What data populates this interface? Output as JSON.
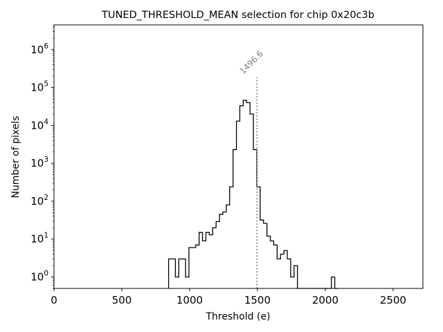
{
  "chart_data": {
    "type": "histogram-step",
    "title": "TUNED_THRESHOLD_MEAN selection for chip 0x20c3b",
    "xlabel": "Threshold (e)",
    "ylabel": "Number of pixels",
    "xlim": [
      0,
      2720
    ],
    "ylim": [
      0.5,
      4500000
    ],
    "yscale": "log",
    "grid": false,
    "x_ticks": [
      {
        "value": 0,
        "label": "0"
      },
      {
        "value": 500,
        "label": "500"
      },
      {
        "value": 1000,
        "label": "1000"
      },
      {
        "value": 1500,
        "label": "1500"
      },
      {
        "value": 2000,
        "label": "2000"
      },
      {
        "value": 2500,
        "label": "2500"
      }
    ],
    "y_ticks": [
      {
        "value": 1,
        "base": "10",
        "exp": "0"
      },
      {
        "value": 10,
        "base": "10",
        "exp": "1"
      },
      {
        "value": 100,
        "base": "10",
        "exp": "2"
      },
      {
        "value": 1000,
        "base": "10",
        "exp": "3"
      },
      {
        "value": 10000,
        "base": "10",
        "exp": "4"
      },
      {
        "value": 100000,
        "base": "10",
        "exp": "5"
      },
      {
        "value": 1000000,
        "base": "10",
        "exp": "6"
      }
    ],
    "bin_edges": [
      845,
      870,
      895,
      920,
      945,
      970,
      995,
      1020,
      1045,
      1070,
      1095,
      1120,
      1145,
      1170,
      1195,
      1220,
      1245,
      1270,
      1295,
      1320,
      1345,
      1370,
      1395,
      1420,
      1445,
      1470,
      1495,
      1520,
      1545,
      1570,
      1595,
      1620,
      1645,
      1670,
      1695,
      1720,
      1745,
      1770,
      1795,
      1820,
      1845,
      1870,
      1895,
      1920,
      1945,
      1970,
      1995,
      2020,
      2045,
      2070,
      2095
    ],
    "counts": [
      3,
      3,
      1,
      3,
      3,
      1,
      6,
      6,
      7,
      15,
      9,
      15,
      13,
      20,
      29,
      45,
      52,
      80,
      240,
      2300,
      13000,
      33000,
      46000,
      40000,
      20000,
      2300,
      240,
      32,
      26,
      12,
      9,
      7,
      3,
      4,
      5,
      3,
      1,
      2,
      0,
      0,
      0,
      0,
      0,
      0,
      0,
      0,
      0,
      0,
      1,
      0
    ],
    "annotation": {
      "x": 1496.6,
      "label": "1496.6",
      "line_top_y": 185000,
      "color": "#808080"
    },
    "line_color": "#000000"
  }
}
